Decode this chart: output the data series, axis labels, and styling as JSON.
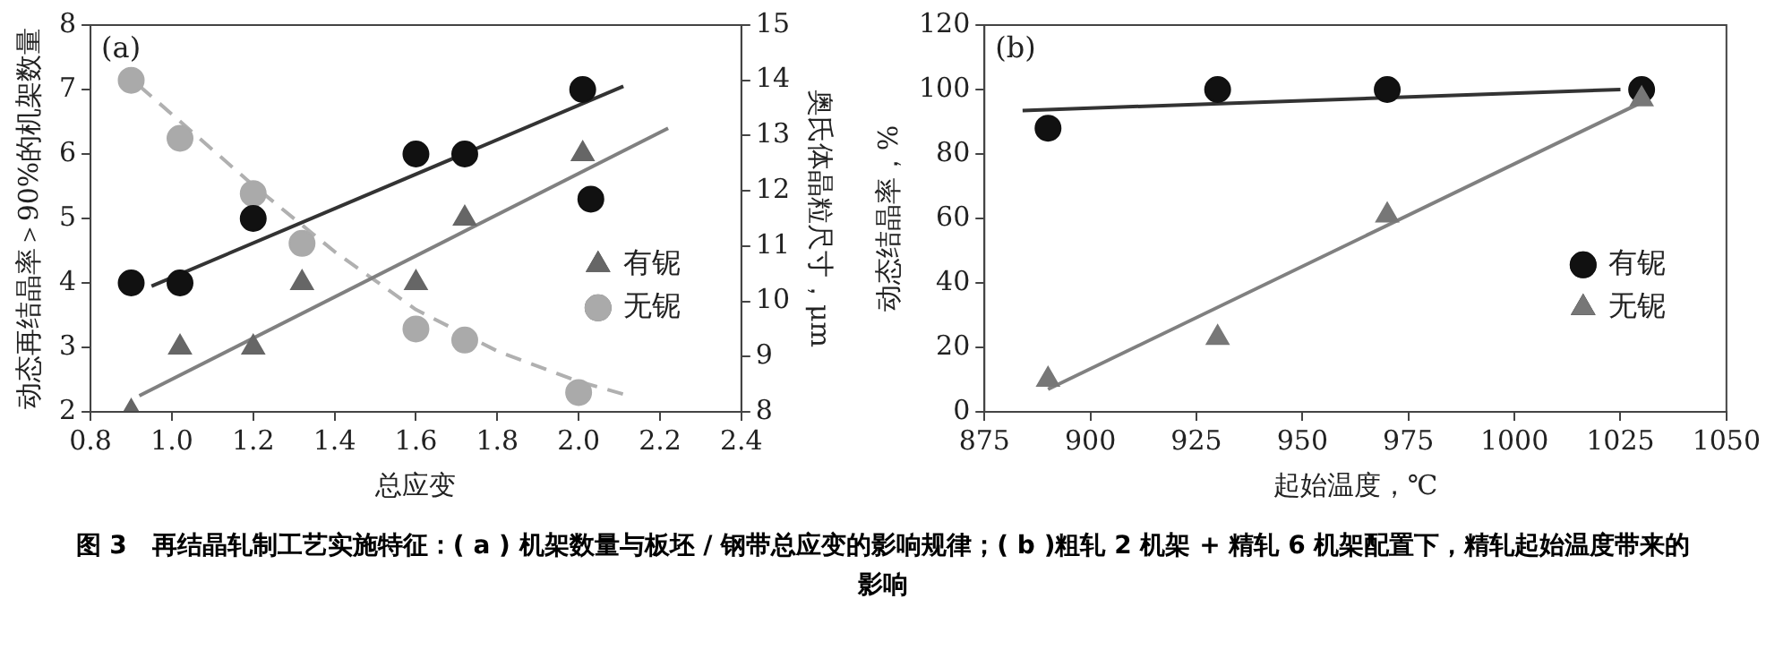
{
  "chart_data": [
    {
      "type": "scatter",
      "title": "(a)",
      "xlabel": "总应变",
      "ylabel": "动态再结晶率＞90%的机架数量",
      "y2label": "奥氏体晶粒尺寸，μm",
      "xlim": [
        0.8,
        2.4
      ],
      "xticks": [
        0.8,
        {
          "value": 1,
          "label": "1.0"
        },
        1.2,
        1.4,
        1.6,
        1.8,
        {
          "value": 2,
          "label": "2.0"
        },
        2.2,
        2.4
      ],
      "ylim": [
        2,
        8
      ],
      "yticks": [
        2,
        3,
        4,
        5,
        6,
        7,
        8
      ],
      "y2lim": [
        8,
        15
      ],
      "y2ticks": [
        8,
        9,
        10,
        11,
        12,
        13,
        14,
        15
      ],
      "legend": "right",
      "series": [
        {
          "type": "scatter",
          "marker": "circle",
          "color": "#111111",
          "x": [
            0.9,
            1.02,
            1.2,
            1.6,
            1.72,
            2.01,
            2.03
          ],
          "values": [
            4,
            4,
            5,
            6,
            6,
            7,
            5.3
          ]
        },
        {
          "type": "line",
          "marker": "none",
          "line_style": "solid",
          "color": "#333333",
          "x": [
            0.95,
            2.11
          ],
          "values": [
            3.95,
            7.05
          ]
        },
        {
          "type": "scatter",
          "name": "有铌",
          "marker": "triangle",
          "color": "#666666",
          "x": [
            0.9,
            1.02,
            1.2,
            1.32,
            1.6,
            1.72,
            2.01
          ],
          "values": [
            2,
            3,
            3,
            4,
            4,
            5,
            6
          ]
        },
        {
          "type": "line",
          "marker": "none",
          "line_style": "solid",
          "color": "#808080",
          "x": [
            0.92,
            2.22
          ],
          "values": [
            2.25,
            6.4
          ]
        },
        {
          "type": "scatter",
          "name": "无铌",
          "marker": "circle",
          "color": "#aaaaaa",
          "axis": "y2",
          "x": [
            0.9,
            1.02,
            1.2,
            1.32,
            1.6,
            1.72,
            2.0
          ],
          "values": [
            14,
            12.95,
            11.95,
            11.05,
            9.5,
            9.3,
            8.35
          ]
        },
        {
          "type": "line",
          "marker": "none",
          "line_style": "dashed",
          "color": "#b0b0b0",
          "axis": "y2",
          "x": [
            0.92,
            1.2,
            1.4,
            1.6,
            1.8,
            2.0,
            2.12
          ],
          "values": [
            13.9,
            12.1,
            10.9,
            9.85,
            9.1,
            8.55,
            8.3
          ]
        }
      ],
      "annotations": [
        "图 3　再结晶轧制工艺实施特征：( a ) 机架数量与板坯 / 钢带总应变的影响规律；( b )粗轧 2 机架 + 精轧 6 机架配置下，精轧起始温度带来的影响"
      ]
    },
    {
      "type": "scatter",
      "title": "(b)",
      "xlabel": "起始温度，℃",
      "ylabel": "动态结晶率，%",
      "xlim": [
        875,
        1050
      ],
      "xticks": [
        875,
        900,
        925,
        950,
        975,
        1000,
        1025,
        1050
      ],
      "ylim": [
        0,
        120
      ],
      "yticks": [
        0,
        20,
        40,
        60,
        80,
        100,
        120
      ],
      "legend": "right",
      "series": [
        {
          "type": "scatter",
          "name": "有铌",
          "marker": "circle",
          "color": "#111111",
          "x": [
            890,
            930,
            970,
            1030
          ],
          "values": [
            88,
            100,
            100,
            100
          ]
        },
        {
          "type": "line",
          "marker": "none",
          "line_style": "solid",
          "color": "#333333",
          "x": [
            884,
            1025
          ],
          "values": [
            93.5,
            100
          ]
        },
        {
          "type": "scatter",
          "name": "无铌",
          "marker": "triangle",
          "color": "#777777",
          "x": [
            890,
            930,
            970,
            1030
          ],
          "values": [
            10,
            23,
            61,
            97
          ]
        },
        {
          "type": "line",
          "marker": "none",
          "line_style": "solid",
          "color": "#808080",
          "x": [
            890,
            1030
          ],
          "values": [
            7,
            96
          ]
        }
      ]
    }
  ]
}
